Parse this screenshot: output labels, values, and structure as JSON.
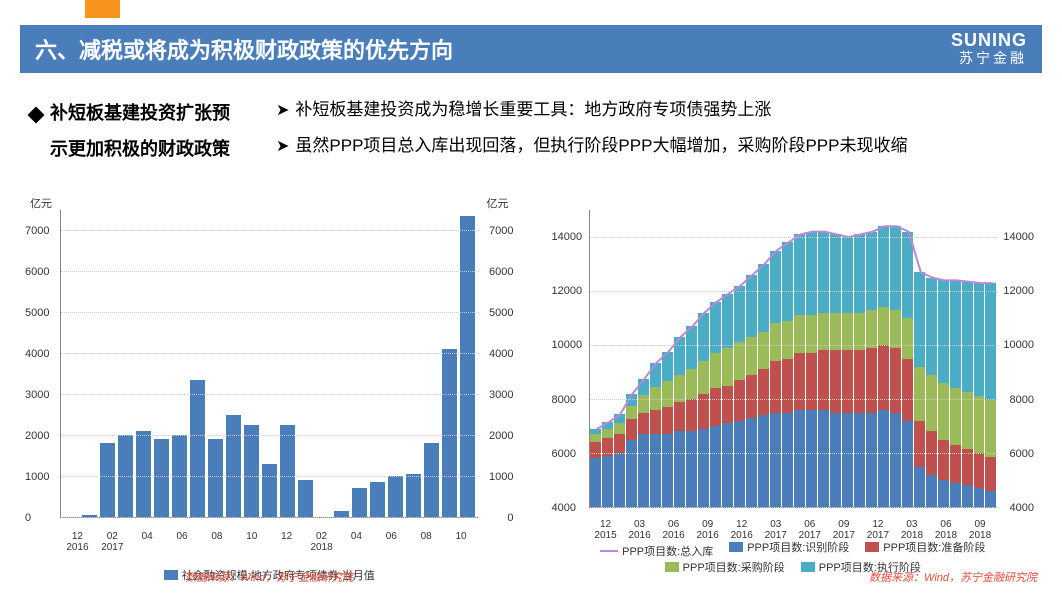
{
  "title": "六、减税或将成为积极财政政策的优先方向",
  "logo": {
    "en": "SUNING",
    "cn": "苏宁金融"
  },
  "sub_title_l1": "补短板基建投资扩张预",
  "sub_title_l2": "示更加积极的财政政策",
  "bullet1": "补短板基建投资成为稳增长重要工具：地方政府专项债强势上涨",
  "bullet2": "虽然PPP项目总入库出现回落，但执行阶段PPP大幅增加，采购阶段PPP未现收缩",
  "source_text": "数据来源：Wind，苏宁金融研究院",
  "chart1": {
    "type": "bar",
    "y_unit": "亿元",
    "ymax": 7500,
    "yticks": [
      0,
      1000,
      2000,
      3000,
      4000,
      5000,
      6000,
      7000
    ],
    "bar_color": "#4a7ebb",
    "legend": "社会融资规模:地方政府专项债券:当月值",
    "x_major": [
      "12",
      "02",
      "04",
      "06",
      "08",
      "10",
      "12",
      "02",
      "04",
      "06",
      "08",
      "10"
    ],
    "x_minor": [
      "2016",
      "2017",
      "",
      "",
      "",
      "",
      "",
      "2018",
      "",
      "",
      "",
      ""
    ],
    "values": [
      0,
      50,
      1800,
      2000,
      2100,
      1900,
      2000,
      3350,
      1900,
      2500,
      2250,
      1300,
      2250,
      900,
      0,
      150,
      700,
      850,
      1000,
      1050,
      1800,
      4100,
      7350
    ]
  },
  "chart2": {
    "type": "stacked-bar-line",
    "y_unit": "",
    "ymax": 15000,
    "ymin": 4000,
    "yticks": [
      4000,
      6000,
      8000,
      10000,
      12000,
      14000
    ],
    "x_major": [
      "12",
      "03",
      "06",
      "09",
      "12",
      "03",
      "06",
      "09",
      "12",
      "03",
      "06",
      "09"
    ],
    "x_minor": [
      "2015",
      "2016",
      "2016",
      "2016",
      "2016",
      "2017",
      "2017",
      "2017",
      "2017",
      "2018",
      "2018",
      "2018"
    ],
    "line_color": "#b889d6",
    "legend": [
      {
        "label": "PPP项目数:总入库",
        "type": "line",
        "color": "#b889d6"
      },
      {
        "label": "PPP项目数:识别阶段",
        "type": "box",
        "color": "#4a7ebb"
      },
      {
        "label": "PPP项目数:准备阶段",
        "type": "box",
        "color": "#c0504d"
      },
      {
        "label": "PPP项目数:采购阶段",
        "type": "box",
        "color": "#9bbb59"
      },
      {
        "label": "PPP项目数:执行阶段",
        "type": "box",
        "color": "#4bacc6"
      }
    ],
    "stacks": [
      {
        "s": [
          5800,
          600,
          300,
          200
        ],
        "t": 6900
      },
      {
        "s": [
          5900,
          650,
          350,
          250
        ],
        "t": 7150
      },
      {
        "s": [
          6000,
          700,
          400,
          350
        ],
        "t": 7450
      },
      {
        "s": [
          6500,
          750,
          500,
          450
        ],
        "t": 8200
      },
      {
        "s": [
          6700,
          800,
          650,
          600
        ],
        "t": 8750
      },
      {
        "s": [
          6700,
          900,
          850,
          900
        ],
        "t": 9350
      },
      {
        "s": [
          6700,
          1000,
          950,
          1100
        ],
        "t": 9750
      },
      {
        "s": [
          6800,
          1100,
          1000,
          1400
        ],
        "t": 10300
      },
      {
        "s": [
          6800,
          1200,
          1100,
          1600
        ],
        "t": 10700
      },
      {
        "s": [
          6900,
          1300,
          1200,
          1800
        ],
        "t": 11200
      },
      {
        "s": [
          7000,
          1400,
          1300,
          1900
        ],
        "t": 11600
      },
      {
        "s": [
          7100,
          1400,
          1400,
          2000
        ],
        "t": 11900
      },
      {
        "s": [
          7200,
          1500,
          1400,
          2100
        ],
        "t": 12200
      },
      {
        "s": [
          7300,
          1600,
          1400,
          2300
        ],
        "t": 12600
      },
      {
        "s": [
          7400,
          1700,
          1400,
          2500
        ],
        "t": 13000
      },
      {
        "s": [
          7500,
          1900,
          1400,
          2700
        ],
        "t": 13500
      },
      {
        "s": [
          7500,
          2000,
          1400,
          2900
        ],
        "t": 13800
      },
      {
        "s": [
          7600,
          2100,
          1400,
          3000
        ],
        "t": 14100
      },
      {
        "s": [
          7600,
          2100,
          1400,
          3100
        ],
        "t": 14200
      },
      {
        "s": [
          7600,
          2200,
          1400,
          3000
        ],
        "t": 14200
      },
      {
        "s": [
          7500,
          2300,
          1400,
          2900
        ],
        "t": 14100
      },
      {
        "s": [
          7500,
          2300,
          1400,
          2800
        ],
        "t": 14000
      },
      {
        "s": [
          7500,
          2300,
          1400,
          2900
        ],
        "t": 14100
      },
      {
        "s": [
          7500,
          2400,
          1400,
          2900
        ],
        "t": 14200
      },
      {
        "s": [
          7600,
          2400,
          1400,
          3000
        ],
        "t": 14400
      },
      {
        "s": [
          7500,
          2400,
          1400,
          3100
        ],
        "t": 14400
      },
      {
        "s": [
          7200,
          2300,
          1500,
          3200
        ],
        "t": 14200
      },
      {
        "s": [
          5500,
          1700,
          2000,
          3500
        ],
        "t": 12700
      },
      {
        "s": [
          5200,
          1600,
          2100,
          3600
        ],
        "t": 12500
      },
      {
        "s": [
          5000,
          1500,
          2100,
          3800
        ],
        "t": 12400
      },
      {
        "s": [
          4900,
          1400,
          2100,
          4000
        ],
        "t": 12400
      },
      {
        "s": [
          4800,
          1350,
          2100,
          4100
        ],
        "t": 12350
      },
      {
        "s": [
          4700,
          1300,
          2100,
          4200
        ],
        "t": 12300
      },
      {
        "s": [
          4600,
          1250,
          2100,
          4350
        ],
        "t": 12300
      }
    ],
    "stack_colors": [
      "#4a7ebb",
      "#c0504d",
      "#9bbb59",
      "#4bacc6"
    ]
  }
}
